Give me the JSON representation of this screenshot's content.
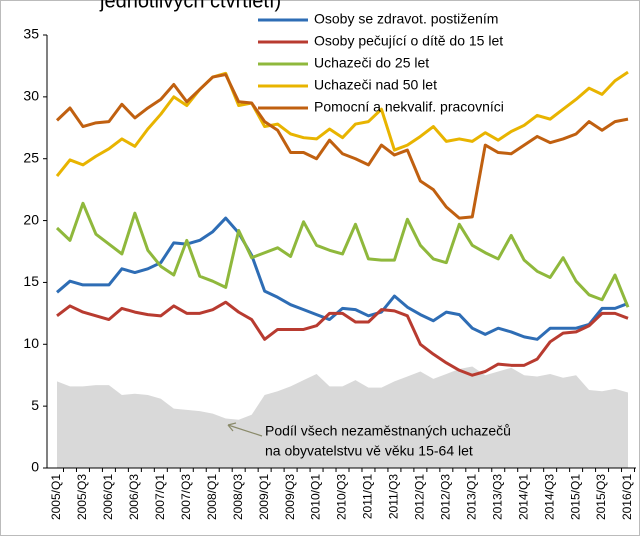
{
  "chart_data": {
    "type": "line",
    "title": "jednotlivých čtvrtletí)",
    "categories": [
      "2005/Q1",
      null,
      "2005/Q3",
      null,
      "2006/Q1",
      null,
      "2006/Q3",
      null,
      "2007/Q1",
      null,
      "2007/Q3",
      null,
      "2008/Q1",
      null,
      "2008/Q3",
      null,
      "2009/Q1",
      null,
      "2009/Q3",
      null,
      "2010/Q1",
      null,
      "2010/Q3",
      null,
      "2011/Q1",
      null,
      "2011/Q3",
      null,
      "2012/Q1",
      null,
      "2012/Q3",
      null,
      "2013/Q1",
      null,
      "2013/Q3",
      null,
      "2014/Q1",
      null,
      "2014/Q3",
      null,
      "2015/Q1",
      null,
      "2015/Q3",
      null,
      "2016/Q1"
    ],
    "ylim": [
      0,
      35
    ],
    "yticks": [
      0,
      5,
      10,
      15,
      20,
      25,
      30,
      35
    ],
    "series": [
      {
        "name": "Osoby se zdravot. postižením",
        "color": "#2e6db5",
        "values": [
          14.2,
          15.1,
          14.8,
          14.8,
          14.8,
          16.1,
          15.8,
          16.1,
          16.6,
          18.2,
          18.1,
          18.4,
          19.1,
          20.2,
          19.0,
          17.2,
          14.3,
          13.8,
          13.2,
          12.8,
          12.4,
          12.0,
          12.9,
          12.8,
          12.3,
          12.6,
          13.9,
          13.0,
          12.4,
          11.9,
          12.6,
          12.4,
          11.3,
          10.8,
          11.3,
          11.0,
          10.6,
          10.4,
          11.3,
          11.3,
          11.3,
          11.6,
          12.9,
          12.9,
          13.3
        ]
      },
      {
        "name": "Osoby pečující o dítě do 15 let",
        "color": "#b83b30",
        "values": [
          12.3,
          13.1,
          12.6,
          12.3,
          12.0,
          12.9,
          12.6,
          12.4,
          12.3,
          13.1,
          12.5,
          12.5,
          12.8,
          13.4,
          12.6,
          12.0,
          10.4,
          11.2,
          11.2,
          11.2,
          11.5,
          12.5,
          12.5,
          11.8,
          11.8,
          12.8,
          12.7,
          12.3,
          10.0,
          9.2,
          8.5,
          7.9,
          7.5,
          7.8,
          8.4,
          8.3,
          8.3,
          8.8,
          10.2,
          10.9,
          11.0,
          11.5,
          12.5,
          12.5,
          12.1
        ]
      },
      {
        "name": "Uchazeči do 25 let",
        "color": "#8fb83c",
        "values": [
          19.4,
          18.4,
          21.4,
          18.9,
          18.1,
          17.3,
          20.6,
          17.6,
          16.3,
          15.6,
          18.4,
          15.5,
          15.1,
          14.6,
          19.2,
          17.0,
          17.4,
          17.8,
          17.1,
          19.9,
          18.0,
          17.6,
          17.3,
          19.7,
          16.9,
          16.8,
          16.8,
          20.1,
          18.0,
          16.9,
          16.6,
          19.7,
          18.0,
          17.4,
          16.9,
          18.8,
          16.8,
          15.9,
          15.4,
          17.0,
          15.1,
          14.0,
          13.6,
          15.6,
          13.0
        ]
      },
      {
        "name": "Uchazeči nad 50 let",
        "color": "#e8b400",
        "values": [
          23.6,
          24.9,
          24.5,
          25.2,
          25.8,
          26.6,
          26.0,
          27.4,
          28.6,
          30.0,
          29.3,
          30.6,
          31.6,
          31.9,
          29.3,
          29.5,
          27.6,
          27.8,
          27.0,
          26.7,
          26.6,
          27.4,
          26.7,
          27.8,
          28.0,
          29.0,
          25.7,
          26.1,
          26.8,
          27.6,
          26.4,
          26.6,
          26.4,
          27.1,
          26.5,
          27.2,
          27.7,
          28.5,
          28.2,
          29.0,
          29.8,
          30.7,
          30.2,
          31.3,
          32.0
        ]
      },
      {
        "name": "Pomocní a nekvalif. pracovníci",
        "color": "#c06010",
        "values": [
          28.1,
          29.1,
          27.6,
          27.9,
          28.0,
          29.4,
          28.3,
          29.1,
          29.8,
          31.0,
          29.6,
          30.6,
          31.6,
          31.8,
          29.6,
          29.5,
          28.0,
          27.3,
          25.5,
          25.5,
          25.0,
          26.5,
          25.4,
          25.0,
          24.5,
          26.1,
          25.3,
          25.7,
          23.2,
          22.5,
          21.1,
          20.2,
          20.3,
          26.1,
          25.5,
          25.4,
          26.1,
          26.8,
          26.3,
          26.6,
          27.0,
          28.0,
          27.3,
          28.0,
          28.2
        ]
      }
    ],
    "area": {
      "color": "#d9d9d9",
      "values": [
        7.0,
        6.6,
        6.6,
        6.7,
        6.7,
        5.9,
        6.0,
        5.9,
        5.6,
        4.8,
        4.7,
        4.6,
        4.4,
        4.0,
        3.9,
        4.3,
        5.9,
        6.2,
        6.6,
        7.1,
        7.6,
        6.6,
        6.6,
        7.1,
        6.5,
        6.5,
        7.0,
        7.4,
        7.8,
        7.2,
        7.6,
        8.0,
        8.2,
        7.5,
        7.8,
        8.1,
        7.5,
        7.4,
        7.6,
        7.3,
        7.5,
        6.3,
        6.2,
        6.4,
        6.1
      ],
      "annotation": [
        "Podíl všech nezaměstnaných uchazečů",
        "na obyvatelstvu vě věku 15-64  let"
      ]
    }
  }
}
